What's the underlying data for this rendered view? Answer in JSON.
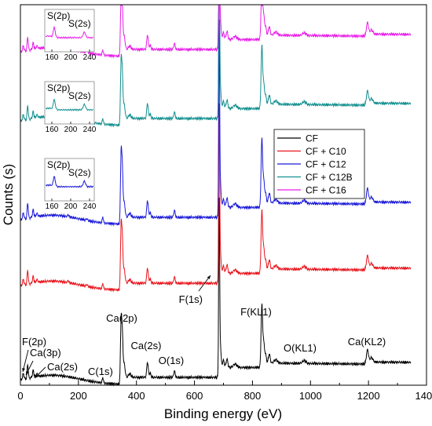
{
  "chart_data": {
    "type": "line",
    "title": "",
    "xlabel": "Binding energy (eV)",
    "ylabel": "Counts (s)",
    "xlim": [
      0,
      1400
    ],
    "x_ticks": [
      "0",
      "200",
      "400",
      "600",
      "800",
      "1000",
      "1200",
      "1400"
    ],
    "legend_position": "right-middle",
    "legend": [
      "CF",
      "CF + C10",
      "CF + C12",
      "CF + C12B",
      "CF + C16"
    ],
    "series": [
      {
        "name": "CF",
        "color": "#000000"
      },
      {
        "name": "CF + C10",
        "color": "#e8141c"
      },
      {
        "name": "CF + C12",
        "color": "#1a1ad8"
      },
      {
        "name": "CF + C12B",
        "color": "#138f8f"
      },
      {
        "name": "CF + C16",
        "color": "#e81ee8"
      }
    ],
    "peak_labels": [
      {
        "text": "F(2p)",
        "x": 10
      },
      {
        "text": "Ca(3p)",
        "x": 25
      },
      {
        "text": "Ca(2s)",
        "x": 44
      },
      {
        "text": "C(1s)",
        "x": 284
      },
      {
        "text": "Ca(2p)",
        "x": 347
      },
      {
        "text": "Ca(2s)",
        "x": 438
      },
      {
        "text": "O(1s)",
        "x": 531
      },
      {
        "text": "F(1s)",
        "x": 685
      },
      {
        "text": "F(KL1)",
        "x": 832
      },
      {
        "text": "O(KL1)",
        "x": 978
      },
      {
        "text": "Ca(KL2)",
        "x": 1196
      }
    ],
    "inset": {
      "labels": [
        "S(2p)",
        "S(2s)"
      ],
      "ticks": [
        "160",
        "200",
        "240"
      ]
    }
  }
}
